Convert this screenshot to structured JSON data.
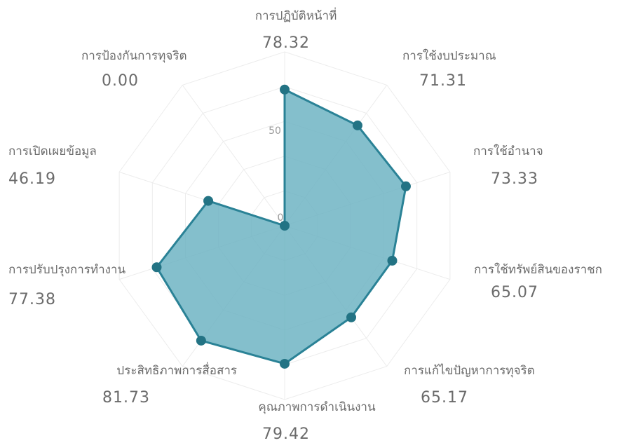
{
  "chart_data": {
    "type": "radar",
    "categories": [
      "การปฏิบัติหน้าที่",
      "การใช้งบประมาณ",
      "การใช้อำนาจ",
      "การใช้ทรัพย์สินของราชก",
      "การแก้ไขปัญหาการทุจริต",
      "คุณภาพการดำเนินงาน",
      "ประสิทธิภาพการสื่อสาร",
      "การปรับปรุงการทำงาน",
      "การเปิดเผยข้อมูล",
      "การป้องกันการทุจริต"
    ],
    "value_labels": [
      "78.32",
      "71.31",
      "73.33",
      "65.07",
      "65.17",
      "79.42",
      "81.73",
      "77.38",
      "46.19",
      "0.00"
    ],
    "series": [
      {
        "values": [
          78.32,
          71.31,
          73.33,
          65.07,
          65.17,
          79.42,
          81.73,
          77.38,
          46.19,
          0.0
        ]
      }
    ],
    "radial_ticks": [
      "0",
      "50"
    ],
    "rlim": [
      0,
      100
    ],
    "grid": true,
    "colors": {
      "fill": "#6fb4c3",
      "stroke": "#2a8296",
      "point": "#237384",
      "grid": "#ececec"
    }
  }
}
